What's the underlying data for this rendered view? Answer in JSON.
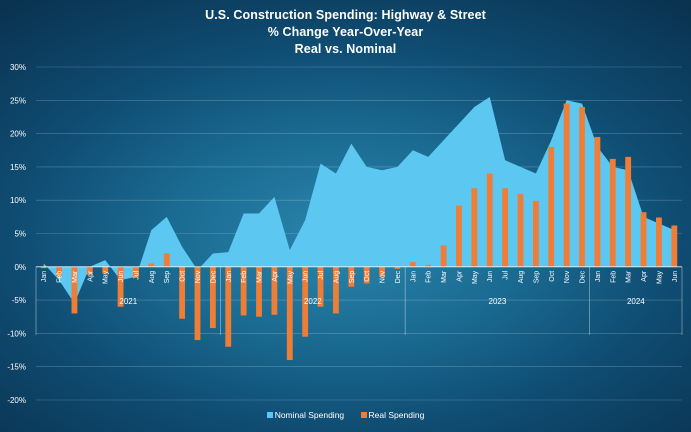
{
  "chart_data": {
    "type": "area+bar",
    "title": "U.S. Construction Spending: Highway & Street",
    "subtitle": "% Change Year-Over-Year",
    "subtitle2": "Real vs. Nominal",
    "ylim": [
      -20,
      30
    ],
    "yticks": [
      "30%",
      "25%",
      "20%",
      "15%",
      "10%",
      "5%",
      "0%",
      "-5%",
      "-10%",
      "-15%",
      "-20%"
    ],
    "ytick_values": [
      30,
      25,
      20,
      15,
      10,
      5,
      0,
      -5,
      -10,
      -15,
      -20
    ],
    "categories": [
      "Jan",
      "Feb",
      "Mar",
      "Apr",
      "May",
      "Jun",
      "Jul",
      "Aug",
      "Sep",
      "Oct",
      "Nov",
      "Dec",
      "Jan",
      "Feb",
      "Mar",
      "Apr",
      "May",
      "Jun",
      "Jul",
      "Aug",
      "Sep",
      "Oct",
      "Nov",
      "Dec",
      "Jan",
      "Feb",
      "Mar",
      "Apr",
      "May",
      "Jun",
      "Jul",
      "Aug",
      "Sep",
      "Oct",
      "Nov",
      "Dec",
      "Jan",
      "Feb",
      "Mar",
      "Apr",
      "May",
      "Jun"
    ],
    "years": [
      {
        "label": "2021",
        "start": 0,
        "end": 11
      },
      {
        "label": "2022",
        "start": 12,
        "end": 23
      },
      {
        "label": "2023",
        "start": 24,
        "end": 35
      },
      {
        "label": "2024",
        "start": 36,
        "end": 41
      }
    ],
    "series": [
      {
        "name": "Nominal Spending",
        "kind": "area",
        "color": "#5cc8f2",
        "values": [
          0.5,
          -2.0,
          -5.5,
          0.0,
          1.0,
          -2.0,
          -1.5,
          5.5,
          7.5,
          3.0,
          -0.5,
          2.0,
          2.2,
          8.0,
          8.0,
          10.5,
          2.5,
          7.0,
          15.5,
          14.0,
          18.5,
          15.0,
          14.5,
          15.0,
          17.5,
          16.5,
          19.0,
          21.5,
          24.0,
          25.5,
          16.0,
          15.0,
          14.0,
          19.0,
          25.0,
          24.5,
          18.0,
          15.0,
          14.5,
          7.5,
          6.5,
          5.5
        ]
      },
      {
        "name": "Real Spending",
        "kind": "bar",
        "color": "#ee7d37",
        "values": [
          -0.2,
          -1.5,
          -7.0,
          -1.2,
          -1.0,
          -6.0,
          -1.5,
          0.5,
          2.0,
          -7.8,
          -11.0,
          -9.2,
          -12.0,
          -7.3,
          -7.5,
          -7.2,
          -14.0,
          -10.5,
          -6.0,
          -7.0,
          -3.0,
          -2.5,
          -1.5,
          -0.3,
          0.7,
          0.3,
          3.2,
          9.2,
          11.8,
          14.0,
          11.8,
          10.9,
          9.9,
          18.0,
          24.5,
          24.0,
          19.5,
          16.2,
          16.5,
          8.2,
          7.4,
          6.2
        ]
      }
    ],
    "legend_position": "bottom-center",
    "grid": true
  },
  "legend": [
    {
      "label": "Nominal Spending",
      "color": "#5cc8f2"
    },
    {
      "label": "Real Spending",
      "color": "#ee7d37"
    }
  ]
}
